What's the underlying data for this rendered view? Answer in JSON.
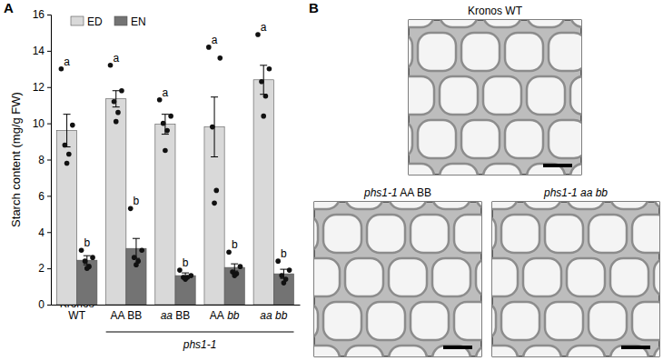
{
  "chart_data": {
    "type": "bar",
    "y_label": "Starch content (mg/g FW)",
    "categories": [
      "Kronos WT",
      "AA BB",
      "aa BB",
      "AA bb",
      "aa bb"
    ],
    "category_groups": [
      {
        "label": "phs1-1",
        "start": 1,
        "end": 4
      }
    ],
    "series": [
      {
        "name": "ED",
        "color": "#d9d9d9",
        "values": [
          9.6,
          11.35,
          9.95,
          9.8,
          12.4
        ],
        "errors": [
          0.9,
          0.45,
          0.55,
          1.65,
          0.8
        ],
        "letters": [
          "a",
          "a",
          "a",
          "a",
          "a"
        ],
        "points": [
          [
            13.0,
            9.9,
            8.8,
            8.3,
            7.8
          ],
          [
            13.2,
            11.8,
            11.2,
            10.6,
            10.1
          ],
          [
            11.3,
            10.4,
            10.0,
            9.6,
            8.5
          ],
          [
            14.2,
            13.6,
            9.8,
            6.3,
            5.6
          ],
          [
            14.9,
            13.0,
            12.3,
            11.5,
            10.4
          ]
        ]
      },
      {
        "name": "EN",
        "color": "#737373",
        "values": [
          2.45,
          3.1,
          1.6,
          2.05,
          1.7
        ],
        "errors": [
          0.25,
          0.55,
          0.15,
          0.2,
          0.25
        ],
        "letters": [
          "b",
          "b",
          "b",
          "b",
          "b"
        ],
        "points": [
          [
            3.0,
            2.6,
            2.4,
            2.1,
            2.0
          ],
          [
            5.3,
            3.0,
            2.6,
            2.4,
            2.2
          ],
          [
            1.9,
            1.6,
            1.5,
            1.5,
            1.4
          ],
          [
            2.9,
            2.1,
            1.8,
            1.7,
            1.6
          ],
          [
            2.4,
            1.9,
            1.6,
            1.4,
            1.2
          ]
        ]
      }
    ],
    "ylim": [
      0,
      16
    ],
    "yticks": [
      0,
      2,
      4,
      6,
      8,
      10,
      12,
      14,
      16
    ],
    "grid": false,
    "legend": "top-left"
  },
  "panel_labels": [
    "A",
    "B"
  ],
  "micrographs": [
    {
      "label": "Kronos WT"
    },
    {
      "label": "phs1-1 AA BB"
    },
    {
      "label": "phs1-1 aa bb"
    }
  ]
}
